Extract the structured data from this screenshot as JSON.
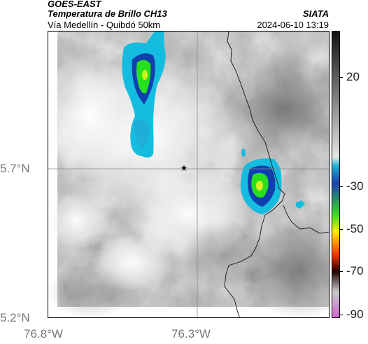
{
  "header": {
    "satellite": "GOES-EAST",
    "product": "Temperatura de Brillo CH13",
    "region": "Vía Medellín - Quibdó 50km",
    "org": "SIATA",
    "datetime": "2024-06-10 13:19"
  },
  "axes": {
    "y_ticks": [
      "5.7°N",
      "5.2°N"
    ],
    "x_ticks": [
      "76.8°W",
      "76.3°W"
    ]
  },
  "colorbar": {
    "ticks": [
      "20",
      "-30",
      "-50",
      "-70",
      "-90"
    ],
    "colors": [
      "#111111",
      "#7a7a7a",
      "#e6e6e6",
      "#1ab4d0",
      "#1f3fb0",
      "#33dd22",
      "#ffee00",
      "#ff3300",
      "#220000",
      "#c8c8c8",
      "#cc66cc"
    ]
  },
  "map": {
    "marker": "star",
    "background_gray": "#b9b9b9",
    "cloud_colors": [
      "#14bde0",
      "#123fae",
      "#28e01e",
      "#e4ee1a"
    ]
  }
}
